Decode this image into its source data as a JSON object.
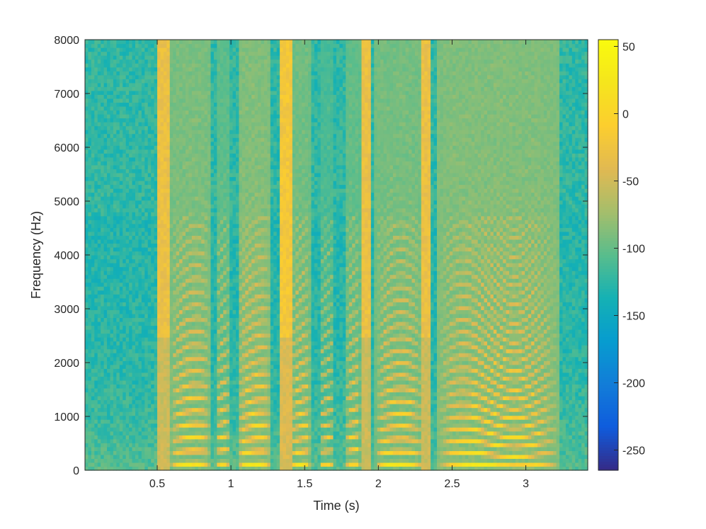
{
  "chart_data": {
    "type": "heatmap",
    "title": "",
    "xlabel": "Time (s)",
    "ylabel": "Frequency (Hz)",
    "xlim": [
      0.01,
      3.42
    ],
    "ylim": [
      0,
      8000
    ],
    "x_ticks": [
      {
        "value": 0.5,
        "label": "0.5"
      },
      {
        "value": 1,
        "label": "1"
      },
      {
        "value": 1.5,
        "label": "1.5"
      },
      {
        "value": 2,
        "label": "2"
      },
      {
        "value": 2.5,
        "label": "2.5"
      },
      {
        "value": 3,
        "label": "3"
      }
    ],
    "y_ticks": [
      {
        "value": 0,
        "label": "0"
      },
      {
        "value": 1000,
        "label": "1000"
      },
      {
        "value": 2000,
        "label": "2000"
      },
      {
        "value": 3000,
        "label": "3000"
      },
      {
        "value": 4000,
        "label": "4000"
      },
      {
        "value": 5000,
        "label": "5000"
      },
      {
        "value": 6000,
        "label": "6000"
      },
      {
        "value": 7000,
        "label": "7000"
      },
      {
        "value": 8000,
        "label": "8000"
      }
    ],
    "colorbar": {
      "colormap": "parula",
      "range": [
        -265,
        55
      ],
      "ticks": [
        {
          "value": 50,
          "label": "50"
        },
        {
          "value": 0,
          "label": "0"
        },
        {
          "value": -50,
          "label": "-50"
        },
        {
          "value": -100,
          "label": "-100"
        },
        {
          "value": -150,
          "label": "-150"
        },
        {
          "value": -200,
          "label": "-200"
        },
        {
          "value": -250,
          "label": "-250"
        }
      ]
    },
    "background_level_db": -130,
    "voiced_segments": [
      {
        "start": 0.59,
        "end": 0.86,
        "f0": 220,
        "peak_db": 22
      },
      {
        "start": 0.9,
        "end": 0.99,
        "f0": 240,
        "peak_db": 10
      },
      {
        "start": 1.05,
        "end": 1.27,
        "f0": 215,
        "peak_db": 25
      },
      {
        "start": 1.41,
        "end": 1.54,
        "f0": 220,
        "peak_db": 18
      },
      {
        "start": 1.6,
        "end": 1.7,
        "f0": 230,
        "peak_db": 0
      },
      {
        "start": 1.78,
        "end": 1.88,
        "f0": 240,
        "peak_db": 12
      },
      {
        "start": 1.98,
        "end": 2.3,
        "f0": 210,
        "peak_db": 20
      },
      {
        "start": 2.4,
        "end": 3.22,
        "f0": 200,
        "peak_db": 25
      }
    ],
    "fricative_bands": [
      {
        "start": 0.5,
        "end": 0.58,
        "peak_db": -20
      },
      {
        "start": 1.33,
        "end": 1.42,
        "peak_db": -10
      },
      {
        "start": 1.88,
        "end": 1.96,
        "peak_db": -20
      },
      {
        "start": 2.3,
        "end": 2.35,
        "peak_db": -20
      }
    ]
  }
}
